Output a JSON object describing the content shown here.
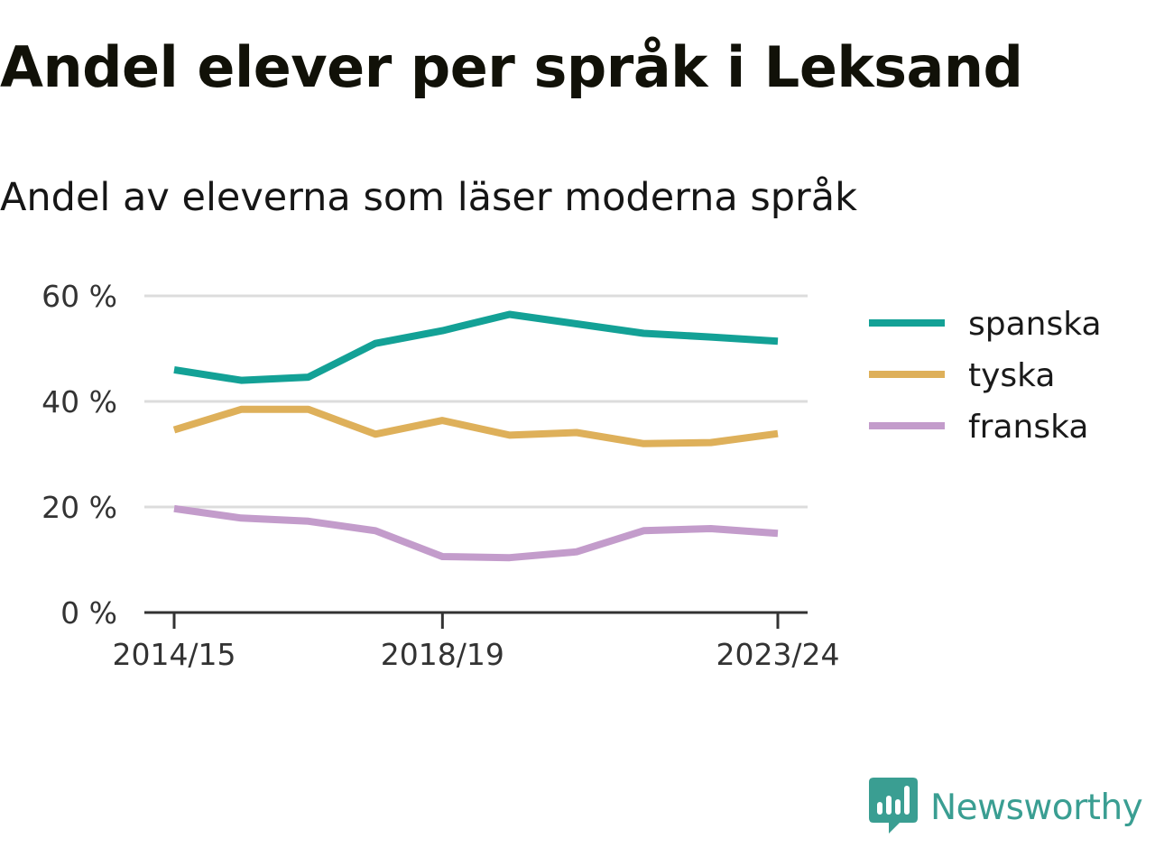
{
  "title": "Andel elever per språk i Leksand",
  "subtitle": "Andel av eleverna som läser moderna språk",
  "brand": {
    "name": "Newsworthy",
    "color": "#3a9e92",
    "icon": "bar-chart-speech-icon"
  },
  "chart_data": {
    "type": "line",
    "x": [
      "2014/15",
      "2015/16",
      "2016/17",
      "2017/18",
      "2018/19",
      "2019/20",
      "2020/21",
      "2021/22",
      "2022/23",
      "2023/24"
    ],
    "x_tick_labels": [
      "2014/15",
      "2018/19",
      "2023/24"
    ],
    "y_ticks": [
      0,
      20,
      40,
      60
    ],
    "y_tick_labels": [
      "0 %",
      "20 %",
      "40 %",
      "60 %"
    ],
    "ylim": [
      0,
      60
    ],
    "grid": true,
    "legend_position": "right",
    "series": [
      {
        "name": "spanska",
        "color": "#13a196",
        "values": [
          46,
          44,
          44.6,
          51,
          53.4,
          56.5,
          54.7,
          52.9,
          52.2,
          51.4
        ]
      },
      {
        "name": "tyska",
        "color": "#deb05a",
        "values": [
          34.6,
          38.5,
          38.5,
          33.8,
          36.4,
          33.6,
          34.1,
          32,
          32.2,
          33.9
        ]
      },
      {
        "name": "franska",
        "color": "#c39ccb",
        "values": [
          19.7,
          17.9,
          17.3,
          15.5,
          10.6,
          10.4,
          11.5,
          15.5,
          15.9,
          15
        ]
      }
    ]
  }
}
